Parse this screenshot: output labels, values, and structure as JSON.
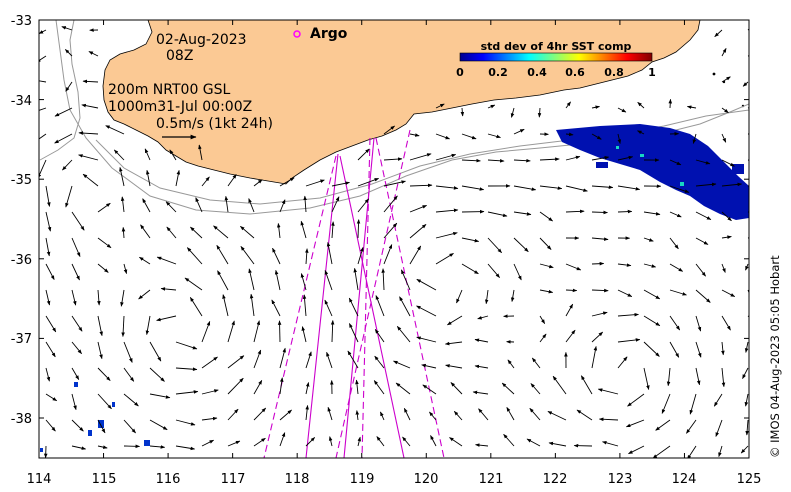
{
  "map": {
    "info_date": "02-Aug-2023",
    "info_time": "08Z",
    "info_line1": "200m  NRT00 GSL",
    "info_line2": "1000m31-Jul 00:00Z",
    "info_line3": "0.5m/s (1kt 24h)",
    "argo_label": "Argo",
    "credit": "© IMOS 04-Aug-2023 05:05 Hobart",
    "x_ticks": [
      "114",
      "115",
      "116",
      "117",
      "118",
      "119",
      "120",
      "121",
      "122",
      "123",
      "124",
      "125"
    ],
    "y_ticks": [
      "-33",
      "-34",
      "-35",
      "-36",
      "-37",
      "-38"
    ],
    "colorbar": {
      "title": "std dev of 4hr SST comp",
      "ticks": [
        "0",
        "0.2",
        "0.4",
        "0.6",
        "0.8",
        "1"
      ]
    }
  },
  "colors": {
    "land": "#fbc994",
    "track": "#cc00cc",
    "argo": "#ff00ff",
    "sst_patch": "#0011b0",
    "contour": "#999999"
  }
}
